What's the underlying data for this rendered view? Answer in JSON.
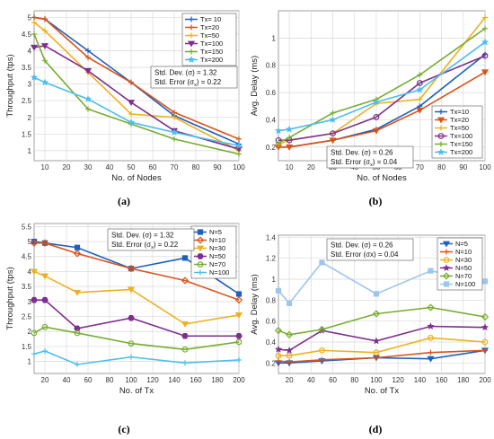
{
  "chart_data": [
    {
      "type": "line",
      "caption": "(a)",
      "xlabel": "No. of Nodes",
      "ylabel": "Throughput (tps)",
      "x": [
        5,
        10,
        30,
        50,
        70,
        100
      ],
      "xticks": [
        10,
        20,
        30,
        40,
        50,
        60,
        70,
        80,
        90,
        100
      ],
      "xlim": [
        5,
        100
      ],
      "yticks": [
        1,
        1.5,
        2,
        2.5,
        3,
        3.5,
        4,
        4.5,
        5
      ],
      "ylim": [
        0.7,
        5.2
      ],
      "grid": true,
      "legend_position": "top-right",
      "stats": [
        "Std. Dev. (σ) = 1.32",
        "Std. Error (σ",
        "x",
        ") = 0.22"
      ],
      "series": [
        {
          "name": "Tx= 10",
          "color": "#1f5fbf",
          "marker": "plus",
          "values": [
            5.0,
            4.95,
            4.0,
            3.05,
            2.05,
            1.2
          ]
        },
        {
          "name": "Tx=20",
          "color": "#d95319",
          "marker": "plus",
          "values": [
            5.0,
            4.95,
            3.8,
            3.05,
            2.15,
            1.35
          ]
        },
        {
          "name": "Tx=50",
          "color": "#edb120",
          "marker": "plus",
          "values": [
            4.85,
            4.6,
            3.35,
            2.1,
            2.0,
            1.0
          ]
        },
        {
          "name": "Tx=100",
          "color": "#7e2f8e",
          "marker": "triangle-down",
          "values": [
            4.1,
            4.15,
            3.4,
            2.45,
            1.6,
            1.05
          ]
        },
        {
          "name": "Tx=150",
          "color": "#77ac30",
          "marker": "plus",
          "values": [
            4.5,
            3.7,
            2.25,
            1.8,
            1.35,
            0.9
          ]
        },
        {
          "name": "Tx=200",
          "color": "#4dbeee",
          "marker": "star",
          "values": [
            3.2,
            3.05,
            2.55,
            1.85,
            1.55,
            1.15
          ]
        }
      ]
    },
    {
      "type": "line",
      "caption": "(b)",
      "xlabel": "No. of Nodes",
      "ylabel": "Avg. Delay (ms)",
      "x": [
        5,
        10,
        30,
        50,
        70,
        100
      ],
      "xticks": [
        10,
        20,
        30,
        40,
        50,
        60,
        70,
        80,
        90,
        100
      ],
      "xlim": [
        5,
        100
      ],
      "yticks": [
        0.2,
        0.4,
        0.6,
        0.8,
        1
      ],
      "ylim": [
        0.1,
        1.2
      ],
      "grid": true,
      "legend_position": "bottom-right",
      "stats": [
        "Std. Dev. (σ) = 0.26",
        "Std. Error (σ",
        "x",
        ") = 0.04"
      ],
      "series": [
        {
          "name": "Tx=10",
          "color": "#1f5fbf",
          "marker": "plus",
          "values": [
            0.2,
            0.2,
            0.25,
            0.33,
            0.5,
            0.88
          ]
        },
        {
          "name": "Tx=20",
          "color": "#d95319",
          "marker": "triangle-down",
          "values": [
            0.2,
            0.2,
            0.25,
            0.32,
            0.47,
            0.75
          ]
        },
        {
          "name": "Tx=50",
          "color": "#edb120",
          "marker": "plus",
          "values": [
            0.22,
            0.25,
            0.3,
            0.52,
            0.55,
            1.15
          ]
        },
        {
          "name": "Tx=100",
          "color": "#7e2f8e",
          "marker": "circle",
          "values": [
            0.25,
            0.25,
            0.3,
            0.42,
            0.67,
            0.87
          ]
        },
        {
          "name": "Tx=150",
          "color": "#77ac30",
          "marker": "plus",
          "values": [
            0.23,
            0.27,
            0.45,
            0.55,
            0.73,
            1.07
          ]
        },
        {
          "name": "Tx=200",
          "color": "#4dbeee",
          "marker": "star",
          "values": [
            0.32,
            0.33,
            0.4,
            0.53,
            0.62,
            0.97
          ]
        }
      ]
    },
    {
      "type": "line",
      "caption": "(c)",
      "xlabel": "No. of Tx",
      "ylabel": "Throughput (tps)",
      "x": [
        10,
        20,
        50,
        100,
        150,
        200
      ],
      "xticks": [
        20,
        40,
        60,
        80,
        100,
        120,
        140,
        160,
        180,
        200
      ],
      "xlim": [
        10,
        200
      ],
      "yticks": [
        1,
        1.5,
        2,
        2.5,
        3,
        3.5,
        4,
        4.5,
        5,
        5.5
      ],
      "ylim": [
        0.6,
        5.6
      ],
      "grid": true,
      "legend_position": "top-right",
      "stats": [
        "Std. Dev. (σ) = 1.32",
        "Std. Error (σ",
        "x",
        ") = 0.22"
      ],
      "series": [
        {
          "name": "N=5",
          "color": "#1f5fbf",
          "marker": "square",
          "values": [
            5.0,
            4.95,
            4.8,
            4.1,
            4.45,
            3.25
          ]
        },
        {
          "name": "N=10",
          "color": "#d95319",
          "marker": "diamond",
          "values": [
            4.95,
            4.95,
            4.6,
            4.1,
            3.7,
            3.05
          ]
        },
        {
          "name": "N=30",
          "color": "#edb120",
          "marker": "triangle-down",
          "values": [
            4.0,
            3.85,
            3.3,
            3.4,
            2.25,
            2.55
          ]
        },
        {
          "name": "N=50",
          "color": "#7e2f8e",
          "marker": "hexagon",
          "values": [
            3.05,
            3.05,
            2.1,
            2.45,
            1.85,
            1.85
          ]
        },
        {
          "name": "N=70",
          "color": "#77ac30",
          "marker": "circle",
          "values": [
            1.95,
            2.15,
            1.95,
            1.6,
            1.4,
            1.65
          ]
        },
        {
          "name": "N=100",
          "color": "#4dbeee",
          "marker": "plus",
          "values": [
            1.25,
            1.35,
            0.9,
            1.15,
            0.95,
            1.05
          ]
        }
      ]
    },
    {
      "type": "line",
      "caption": "(d)",
      "xlabel": "No. of Tx",
      "ylabel": "Avg. Delay (ms)",
      "x": [
        10,
        20,
        50,
        100,
        150,
        200
      ],
      "xticks": [
        20,
        40,
        60,
        80,
        100,
        120,
        140,
        160,
        180,
        200
      ],
      "xlim": [
        10,
        200
      ],
      "yticks": [
        0.2,
        0.4,
        0.6,
        0.8,
        1,
        1.2,
        1.4
      ],
      "ylim": [
        0.1,
        1.42
      ],
      "grid": true,
      "legend_position": "top-right",
      "stats": [
        "Std. Dev. (σ) = 0.26",
        "Std. Error (σx) = 0.04"
      ],
      "series": [
        {
          "name": "N=5",
          "color": "#1f5fbf",
          "marker": "triangle-down",
          "values": [
            0.2,
            0.2,
            0.22,
            0.25,
            0.24,
            0.32
          ]
        },
        {
          "name": "N=10",
          "color": "#d95319",
          "marker": "plus",
          "values": [
            0.22,
            0.21,
            0.23,
            0.25,
            0.3,
            0.32
          ]
        },
        {
          "name": "N=30",
          "color": "#edb120",
          "marker": "circle",
          "values": [
            0.27,
            0.27,
            0.32,
            0.3,
            0.44,
            0.4
          ]
        },
        {
          "name": "N=50",
          "color": "#7e2f8e",
          "marker": "star",
          "values": [
            0.33,
            0.32,
            0.51,
            0.41,
            0.55,
            0.54
          ]
        },
        {
          "name": "N=70",
          "color": "#77ac30",
          "marker": "diamond",
          "values": [
            0.51,
            0.47,
            0.52,
            0.67,
            0.73,
            0.64
          ]
        },
        {
          "name": "N=100",
          "color": "#9ec5f0",
          "marker": "square",
          "values": [
            0.89,
            0.77,
            1.16,
            0.86,
            1.08,
            0.98
          ]
        }
      ]
    }
  ]
}
